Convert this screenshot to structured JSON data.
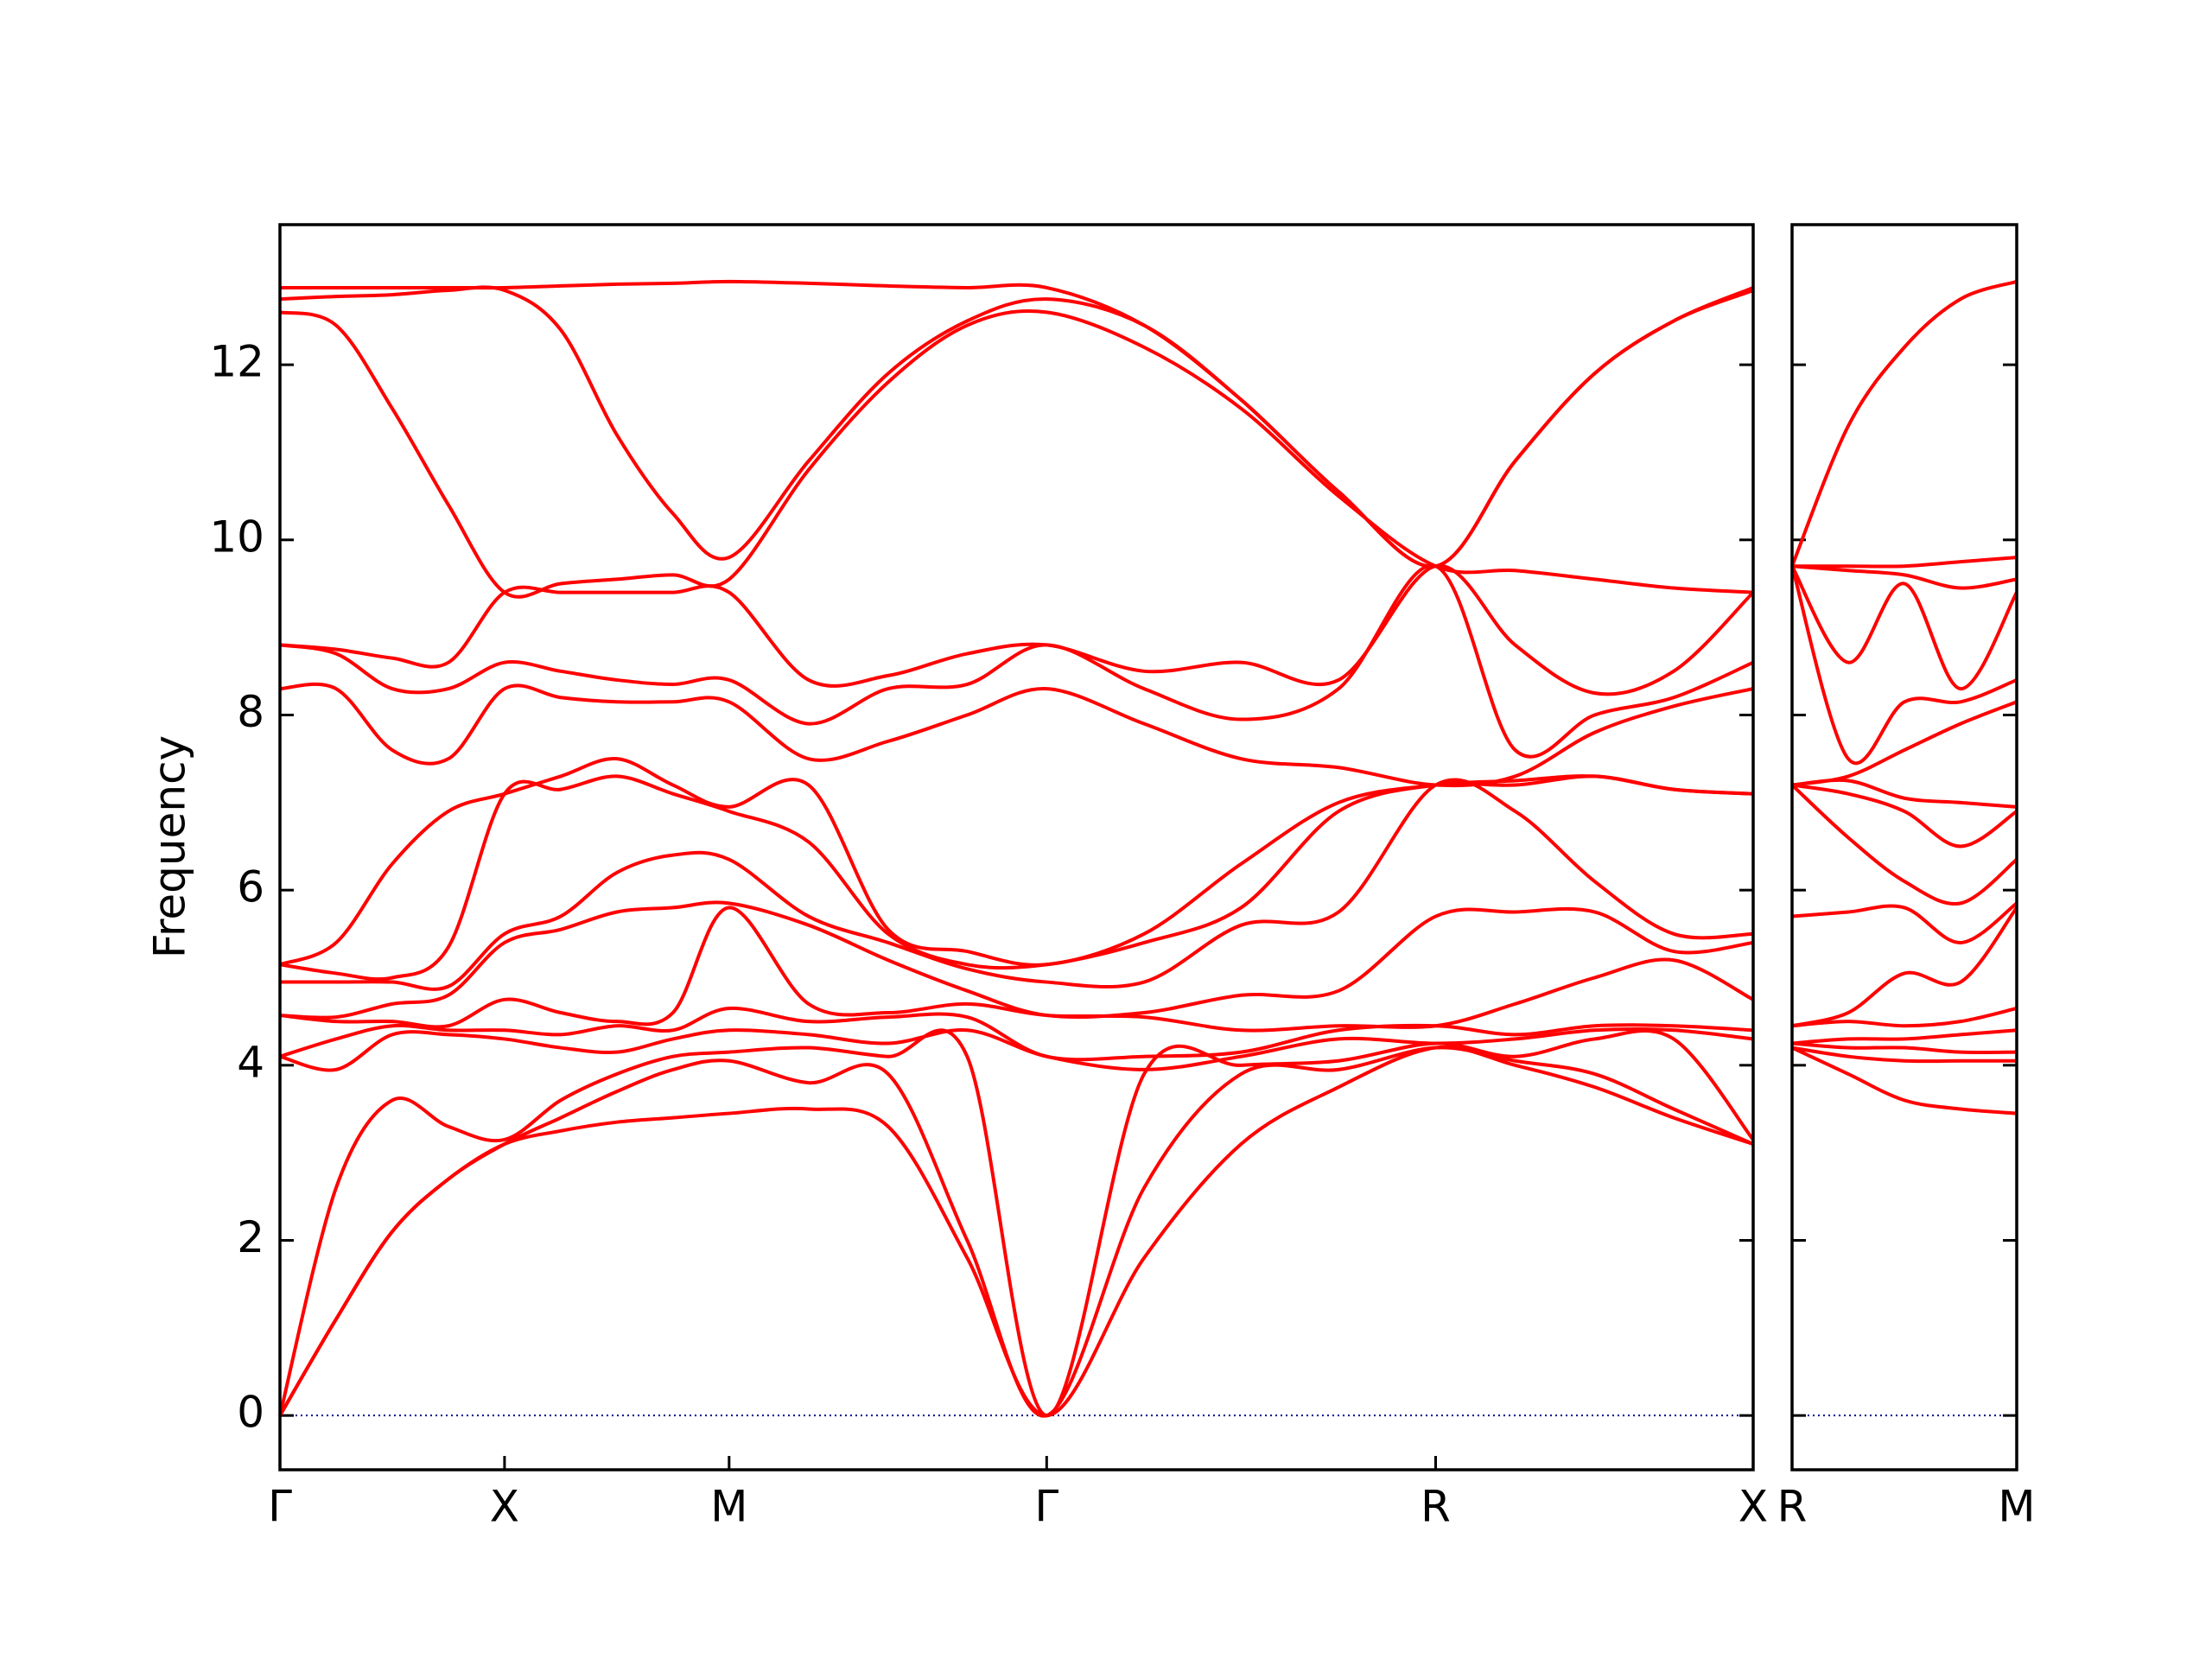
{
  "chart_data": [
    {
      "type": "line",
      "ylabel": "Frequency",
      "color": "#ff0000",
      "xlim": [
        0,
        3.28
      ],
      "ylim": [
        -0.62,
        13.6
      ],
      "xticks": [
        {
          "value": 0,
          "label": "Γ"
        },
        {
          "value": 0.5,
          "label": "X"
        },
        {
          "value": 1.0,
          "label": "M"
        },
        {
          "value": 1.707,
          "label": "Γ"
        },
        {
          "value": 2.573,
          "label": "R"
        },
        {
          "value": 3.28,
          "label": "X"
        }
      ],
      "yticks": [
        0,
        2,
        4,
        6,
        8,
        10,
        12
      ],
      "x": [
        0,
        0.125,
        0.25,
        0.375,
        0.5,
        0.625,
        0.75,
        0.875,
        1.0,
        1.177,
        1.354,
        1.53,
        1.707,
        1.924,
        2.14,
        2.357,
        2.573,
        2.75,
        2.927,
        3.103,
        3.28
      ],
      "series": [
        {
          "values": [
            0,
            1.1,
            2.1,
            2.7,
            3.1,
            3.25,
            3.35,
            3.4,
            3.45,
            3.5,
            3.3,
            1.8,
            0,
            1.8,
            3.1,
            3.75,
            4.2,
            4.0,
            3.75,
            3.4,
            3.1
          ]
        },
        {
          "values": [
            0,
            1.1,
            2.1,
            2.7,
            3.1,
            3.4,
            3.7,
            3.95,
            4.05,
            3.8,
            3.9,
            2.0,
            0,
            2.6,
            3.9,
            3.95,
            4.2,
            4.05,
            3.9,
            3.5,
            3.1
          ]
        },
        {
          "values": [
            0,
            2.6,
            3.6,
            3.3,
            3.15,
            3.6,
            3.9,
            4.1,
            4.15,
            4.2,
            4.1,
            4.1,
            0,
            3.9,
            4.0,
            4.05,
            4.25,
            4.1,
            4.3,
            4.3,
            3.15
          ]
        },
        {
          "values": [
            4.1,
            3.95,
            4.35,
            4.35,
            4.3,
            4.2,
            4.15,
            4.3,
            4.4,
            4.35,
            4.25,
            4.4,
            4.1,
            3.95,
            4.1,
            4.3,
            4.25,
            4.3,
            4.4,
            4.4,
            4.3
          ]
        },
        {
          "values": [
            4.1,
            4.3,
            4.45,
            4.4,
            4.4,
            4.35,
            4.45,
            4.4,
            4.65,
            4.5,
            4.55,
            4.55,
            4.1,
            4.1,
            4.15,
            4.4,
            4.45,
            4.35,
            4.45,
            4.45,
            4.4
          ]
        },
        {
          "values": [
            4.57,
            4.5,
            4.5,
            4.45,
            4.75,
            4.6,
            4.5,
            4.6,
            5.8,
            4.7,
            4.6,
            4.7,
            4.57,
            4.55,
            4.4,
            4.45,
            4.45,
            4.7,
            5.0,
            5.2,
            4.75
          ]
        },
        {
          "values": [
            4.57,
            4.55,
            4.7,
            4.8,
            5.4,
            5.55,
            5.75,
            5.8,
            5.85,
            5.6,
            5.2,
            4.85,
            4.57,
            4.6,
            4.8,
            4.85,
            5.7,
            5.75,
            5.75,
            5.3,
            5.4
          ]
        },
        {
          "values": [
            4.95,
            4.95,
            4.95,
            4.9,
            5.5,
            5.7,
            6.2,
            6.4,
            6.35,
            5.7,
            5.4,
            5.1,
            4.95,
            4.95,
            5.6,
            5.75,
            7.2,
            6.9,
            6.1,
            5.5,
            5.5
          ]
        },
        {
          "values": [
            5.15,
            5.05,
            5.0,
            5.35,
            7.1,
            7.15,
            7.3,
            7.1,
            6.9,
            6.55,
            5.5,
            5.15,
            5.15,
            5.4,
            5.8,
            6.9,
            7.2,
            7.2,
            7.3,
            7.15,
            7.1
          ]
        },
        {
          "values": [
            5.15,
            5.4,
            6.3,
            6.9,
            7.1,
            7.3,
            7.5,
            7.2,
            6.95,
            7.2,
            5.55,
            5.3,
            5.15,
            5.5,
            6.3,
            7.0,
            7.2,
            7.25,
            7.3,
            7.15,
            7.1
          ]
        },
        {
          "values": [
            8.3,
            8.3,
            7.6,
            7.5,
            8.3,
            8.2,
            8.15,
            8.15,
            8.15,
            7.5,
            7.7,
            8.0,
            8.3,
            7.9,
            7.5,
            7.4,
            7.2,
            7.3,
            7.8,
            8.1,
            8.3
          ]
        },
        {
          "values": [
            8.8,
            8.7,
            8.3,
            8.3,
            8.6,
            8.5,
            8.4,
            8.35,
            8.4,
            7.9,
            8.3,
            8.35,
            8.8,
            8.3,
            7.95,
            8.3,
            9.7,
            7.6,
            8.0,
            8.2,
            8.6
          ]
        },
        {
          "values": [
            8.8,
            8.75,
            8.65,
            8.6,
            9.4,
            9.4,
            9.4,
            9.4,
            9.4,
            8.4,
            8.45,
            8.7,
            8.8,
            8.5,
            8.6,
            8.4,
            9.7,
            8.8,
            8.25,
            8.5,
            9.4
          ]
        },
        {
          "values": [
            12.6,
            12.45,
            11.5,
            10.4,
            9.4,
            9.5,
            9.55,
            9.6,
            9.55,
            10.8,
            11.8,
            12.45,
            12.6,
            12.2,
            11.5,
            10.5,
            9.7,
            9.65,
            9.55,
            9.45,
            9.4
          ]
        },
        {
          "values": [
            12.75,
            12.78,
            12.8,
            12.85,
            12.85,
            12.4,
            11.2,
            10.3,
            9.8,
            10.9,
            11.9,
            12.5,
            12.75,
            12.45,
            11.6,
            10.55,
            9.7,
            10.9,
            11.9,
            12.5,
            12.85
          ]
        },
        {
          "values": [
            12.88,
            12.88,
            12.88,
            12.88,
            12.88,
            12.9,
            12.92,
            12.93,
            12.95,
            12.93,
            12.9,
            12.88,
            12.88,
            12.45,
            11.6,
            10.55,
            9.7,
            10.9,
            11.9,
            12.5,
            12.88
          ]
        }
      ]
    },
    {
      "type": "line",
      "color": "#ff0000",
      "xlim": [
        0,
        0.5
      ],
      "ylim": [
        -0.62,
        13.6
      ],
      "xticks": [
        {
          "value": 0,
          "label": "R"
        },
        {
          "value": 0.5,
          "label": "M"
        }
      ],
      "yticks": [
        0,
        2,
        4,
        6,
        8,
        10,
        12
      ],
      "x": [
        0,
        0.125,
        0.25,
        0.375,
        0.5
      ],
      "series": [
        {
          "values": [
            4.2,
            3.9,
            3.6,
            3.5,
            3.45
          ]
        },
        {
          "values": [
            4.2,
            4.1,
            4.05,
            4.05,
            4.05
          ]
        },
        {
          "values": [
            4.25,
            4.2,
            4.2,
            4.15,
            4.15
          ]
        },
        {
          "values": [
            4.25,
            4.3,
            4.3,
            4.35,
            4.4
          ]
        },
        {
          "values": [
            4.45,
            4.5,
            4.45,
            4.5,
            4.65
          ]
        },
        {
          "values": [
            4.45,
            4.6,
            5.05,
            4.95,
            5.8
          ]
        },
        {
          "values": [
            5.7,
            5.75,
            5.8,
            5.4,
            5.85
          ]
        },
        {
          "values": [
            7.2,
            6.6,
            6.1,
            5.85,
            6.35
          ]
        },
        {
          "values": [
            7.2,
            7.1,
            6.9,
            6.5,
            6.9
          ]
        },
        {
          "values": [
            7.2,
            7.25,
            7.05,
            7.0,
            6.95
          ]
        },
        {
          "values": [
            7.2,
            7.3,
            7.6,
            7.9,
            8.15
          ]
        },
        {
          "values": [
            9.7,
            7.5,
            8.15,
            8.15,
            8.4
          ]
        },
        {
          "values": [
            9.7,
            8.6,
            9.5,
            8.3,
            9.4
          ]
        },
        {
          "values": [
            9.7,
            9.65,
            9.6,
            9.45,
            9.55
          ]
        },
        {
          "values": [
            9.7,
            9.7,
            9.7,
            9.75,
            9.8
          ]
        },
        {
          "values": [
            9.7,
            11.3,
            12.2,
            12.75,
            12.95
          ]
        }
      ]
    }
  ]
}
